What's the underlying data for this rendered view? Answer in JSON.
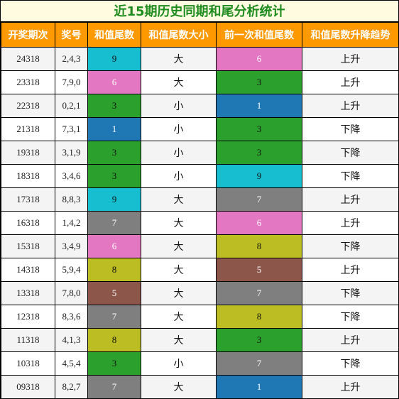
{
  "title": "近15期历史同期和尾分析统计",
  "headers": [
    "开奖期次",
    "奖号",
    "和值尾数",
    "和值尾数大小",
    "前一次和值尾数",
    "和值尾数升降趋势"
  ],
  "colors": {
    "0": "#1f77b4",
    "1": "#1f77b4",
    "2": "#1f77b4",
    "3": "#2ca02c",
    "5": "#8c564b",
    "6": "#e377c2",
    "7": "#7f7f7f",
    "8": "#bcbd22",
    "9": "#17becf"
  },
  "rows": [
    {
      "period": "24318",
      "numbers": "2,4,3",
      "tail": "9",
      "size": "大",
      "prev_tail": "6",
      "trend": "上升"
    },
    {
      "period": "23318",
      "numbers": "7,9,0",
      "tail": "6",
      "size": "大",
      "prev_tail": "3",
      "trend": "上升"
    },
    {
      "period": "22318",
      "numbers": "0,2,1",
      "tail": "3",
      "size": "小",
      "prev_tail": "1",
      "trend": "上升"
    },
    {
      "period": "21318",
      "numbers": "7,3,1",
      "tail": "1",
      "size": "小",
      "prev_tail": "3",
      "trend": "下降"
    },
    {
      "period": "19318",
      "numbers": "3,1,9",
      "tail": "3",
      "size": "小",
      "prev_tail": "3",
      "trend": "下降"
    },
    {
      "period": "18318",
      "numbers": "3,4,6",
      "tail": "3",
      "size": "小",
      "prev_tail": "9",
      "trend": "下降"
    },
    {
      "period": "17318",
      "numbers": "8,8,3",
      "tail": "9",
      "size": "大",
      "prev_tail": "7",
      "trend": "上升"
    },
    {
      "period": "16318",
      "numbers": "1,4,2",
      "tail": "7",
      "size": "大",
      "prev_tail": "6",
      "trend": "上升"
    },
    {
      "period": "15318",
      "numbers": "3,4,9",
      "tail": "6",
      "size": "大",
      "prev_tail": "8",
      "trend": "下降"
    },
    {
      "period": "14318",
      "numbers": "5,9,4",
      "tail": "8",
      "size": "大",
      "prev_tail": "5",
      "trend": "上升"
    },
    {
      "period": "13318",
      "numbers": "7,8,0",
      "tail": "5",
      "size": "大",
      "prev_tail": "7",
      "trend": "下降"
    },
    {
      "period": "12318",
      "numbers": "8,3,6",
      "tail": "7",
      "size": "大",
      "prev_tail": "8",
      "trend": "下降"
    },
    {
      "period": "11318",
      "numbers": "4,1,3",
      "tail": "8",
      "size": "大",
      "prev_tail": "3",
      "trend": "上升"
    },
    {
      "period": "10318",
      "numbers": "4,5,4",
      "tail": "3",
      "size": "小",
      "prev_tail": "7",
      "trend": "下降"
    },
    {
      "period": "09318",
      "numbers": "8,2,7",
      "tail": "7",
      "size": "大",
      "prev_tail": "1",
      "trend": "上升"
    }
  ]
}
